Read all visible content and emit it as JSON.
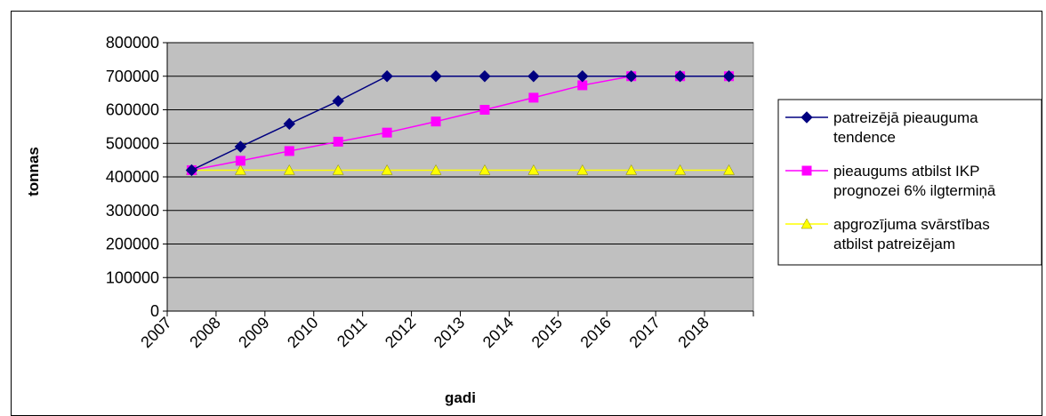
{
  "chart_data": {
    "type": "line",
    "title": "",
    "xlabel": "gadi",
    "ylabel": "tonnas",
    "categories": [
      "2007",
      "2008",
      "2009",
      "2010",
      "2011",
      "2012",
      "2013",
      "2014",
      "2015",
      "2016",
      "2017",
      "2018"
    ],
    "ylim": [
      0,
      800000
    ],
    "yticks": [
      "0",
      "100000",
      "200000",
      "300000",
      "400000",
      "500000",
      "600000",
      "700000",
      "800000"
    ],
    "plot_background": "#c0c0c0",
    "grid": true,
    "legend_position": "right",
    "series": [
      {
        "name_lines": [
          "patreizējā pieauguma",
          "tendence"
        ],
        "color": "#000080",
        "marker": "diamond",
        "values": [
          420000,
          490000,
          558000,
          626000,
          700000,
          700000,
          700000,
          700000,
          700000,
          700000,
          700000,
          700000
        ]
      },
      {
        "name_lines": [
          "pieaugums atbilst IKP",
          "prognozei 6% ilgtermiņā"
        ],
        "color": "#ff00ff",
        "marker": "square",
        "values": [
          420000,
          448000,
          477000,
          505000,
          532000,
          565000,
          600000,
          636000,
          673000,
          700000,
          700000,
          700000
        ]
      },
      {
        "name_lines": [
          "apgrozījuma svārstības",
          "atbilst patreizējam"
        ],
        "color": "#ffff00",
        "marker": "triangle",
        "values": [
          420000,
          420000,
          420000,
          420000,
          420000,
          420000,
          420000,
          420000,
          420000,
          420000,
          420000,
          420000
        ]
      }
    ]
  }
}
